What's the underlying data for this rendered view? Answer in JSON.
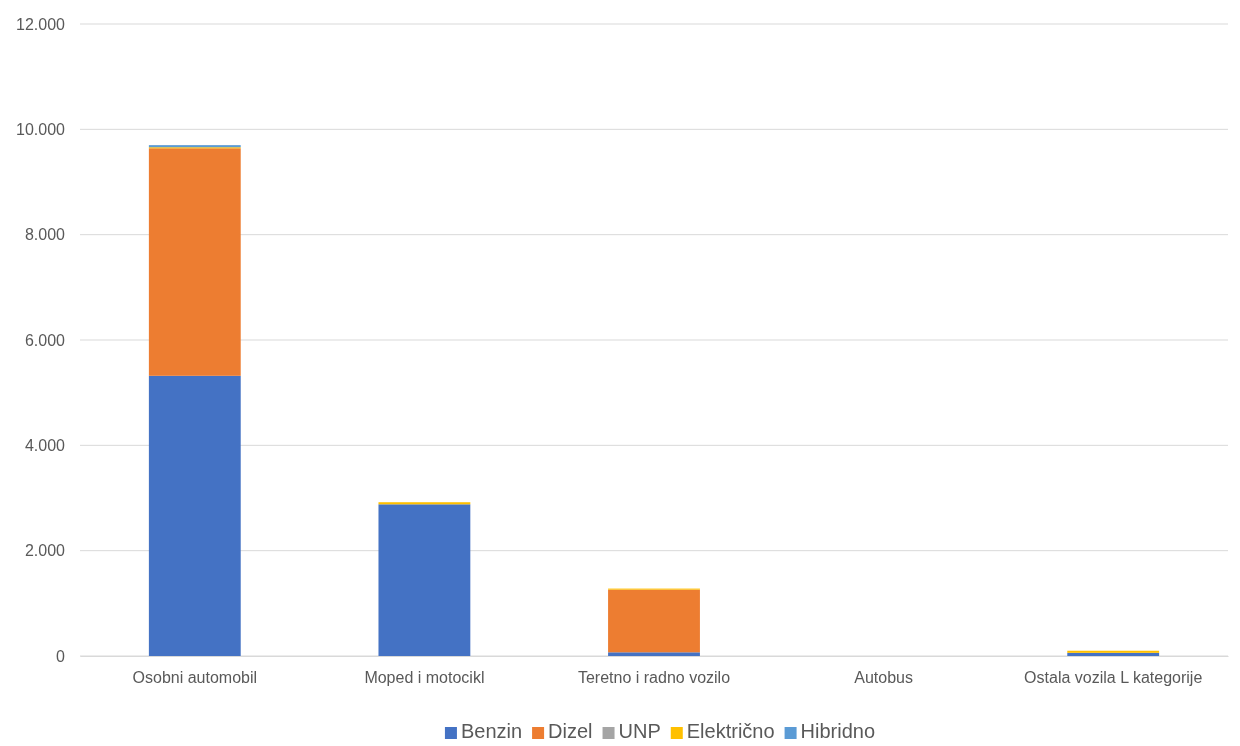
{
  "chart_data": {
    "type": "bar",
    "stacked": true,
    "categories": [
      "Osobni automobil",
      "Moped i motocikl",
      "Teretno i radno vozilo",
      "Autobus",
      "Ostala vozila L kategorije"
    ],
    "series": [
      {
        "name": "Benzin",
        "color": "#4472c4",
        "values": [
          5320,
          2880,
          70,
          0,
          60
        ]
      },
      {
        "name": "Dizel",
        "color": "#ed7d31",
        "values": [
          4320,
          0,
          1190,
          0,
          0
        ]
      },
      {
        "name": "UNP",
        "color": "#a5a5a5",
        "values": [
          null,
          0,
          0,
          0,
          0
        ]
      },
      {
        "name": "Električno",
        "color": "#ffc000",
        "values": [
          20,
          40,
          20,
          0,
          40
        ]
      },
      {
        "name": "Hibridno",
        "color": "#5b9bd5",
        "values": [
          40,
          0,
          0,
          0,
          0
        ]
      }
    ],
    "ylim": [
      0,
      12000
    ],
    "yticks": [
      {
        "value": 0,
        "label": "0"
      },
      {
        "value": 2000,
        "label": "2.000"
      },
      {
        "value": 4000,
        "label": "4.000"
      },
      {
        "value": 6000,
        "label": "6.000"
      },
      {
        "value": 8000,
        "label": "8.000"
      },
      {
        "value": 10000,
        "label": "10.000"
      },
      {
        "value": 12000,
        "label": "12.000"
      }
    ],
    "grid": "y",
    "legend": "bottom"
  }
}
